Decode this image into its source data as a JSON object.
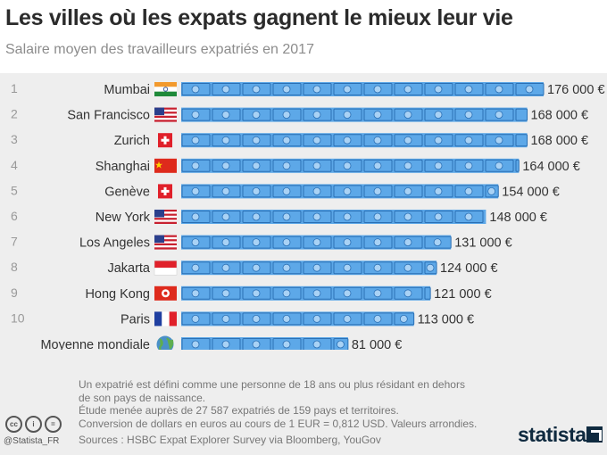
{
  "title": "Les villes où les expats gagnent le mieux leur vie",
  "subtitle": "Salaire moyen des travailleurs expatriés en 2017",
  "footnote_lines": [
    "Un expatrié est défini comme une personne de 18 ans ou plus résidant en dehors",
    "de son pays de naissance.",
    "Étude menée auprès de 27 587 expatriés de 159 pays et territoires.",
    "Conversion de dollars en euros au cours de 1 EUR = 0,812 USD. Valeurs arrondies."
  ],
  "sources": "Sources : HSBC Expat Explorer Survey via Bloomberg, YouGov",
  "handle": "@Statista_FR",
  "brand": "statista",
  "icons": {
    "cc": "cc-icon",
    "attribution": "person-icon",
    "nd": "equals-icon",
    "globe": "globe-icon"
  },
  "colors": {
    "bill": "#5da8e8",
    "bill_dark": "#2a6fb4",
    "panel": "#eeeeee"
  },
  "chart_data": {
    "type": "bar",
    "orientation": "horizontal",
    "unit": "€",
    "ranks": [
      "1",
      "2",
      "3",
      "4",
      "5",
      "6",
      "7",
      "8",
      "9",
      "10",
      ""
    ],
    "categories": [
      "Mumbai",
      "San Francisco",
      "Zurich",
      "Shanghai",
      "Genève",
      "New York",
      "Los Angeles",
      "Jakarta",
      "Hong Kong",
      "Paris",
      "Moyenne mondiale"
    ],
    "flags": [
      "india",
      "usa",
      "switzerland",
      "china",
      "switzerland",
      "usa",
      "usa",
      "indonesia",
      "hongkong",
      "france",
      "globe"
    ],
    "values": [
      176000,
      168000,
      168000,
      164000,
      154000,
      148000,
      131000,
      124000,
      121000,
      113000,
      81000
    ],
    "value_labels": [
      "176 000 €",
      "168 000 €",
      "168 000 €",
      "164 000 €",
      "154 000 €",
      "148 000 €",
      "131 000 €",
      "124 000 €",
      "121 000 €",
      "113 000 €",
      "81 000 €"
    ],
    "xlim": [
      0,
      176000
    ]
  }
}
